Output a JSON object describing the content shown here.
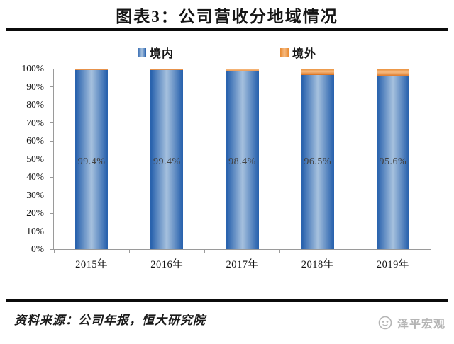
{
  "title": "图表3：公司营收分地域情况",
  "legend": [
    {
      "label": "境内",
      "swatch": "blue-gradient-square"
    },
    {
      "label": "境外",
      "swatch": "orange-gradient-square"
    }
  ],
  "footer": {
    "source": "资料来源：公司年报，恒大研究院",
    "brand": "泽平宏观"
  },
  "colors": {
    "domestic_edge": "#2A63AE",
    "domestic_mid": "#A6C1DE",
    "overseas_edge": "#E88930",
    "overseas_mid": "#F6BB82",
    "overseas_dark": "#DA701E",
    "axis": "#9a9a9a",
    "rule_black": "#0b0b0b",
    "brand_gray": "#b4b4b4"
  },
  "chart_data": {
    "type": "bar",
    "stacked": true,
    "title": "图表3：公司营收分地域情况",
    "categories": [
      "2015年",
      "2016年",
      "2017年",
      "2018年",
      "2019年"
    ],
    "series": [
      {
        "name": "境内",
        "values": [
          99.4,
          99.4,
          98.4,
          96.5,
          95.6
        ]
      },
      {
        "name": "境外",
        "values": [
          0.6,
          0.6,
          1.6,
          3.5,
          4.4
        ]
      }
    ],
    "bar_labels": [
      "99.4%",
      "99.4%",
      "98.4%",
      "96.5%",
      "95.6%"
    ],
    "xlabel": "",
    "ylabel": "",
    "ylim": [
      0,
      100
    ],
    "ytick_step": 10,
    "ytick_labels": [
      "0%",
      "10%",
      "20%",
      "30%",
      "40%",
      "50%",
      "60%",
      "70%",
      "80%",
      "90%",
      "100%"
    ],
    "legend_position": "top",
    "grid": false
  }
}
